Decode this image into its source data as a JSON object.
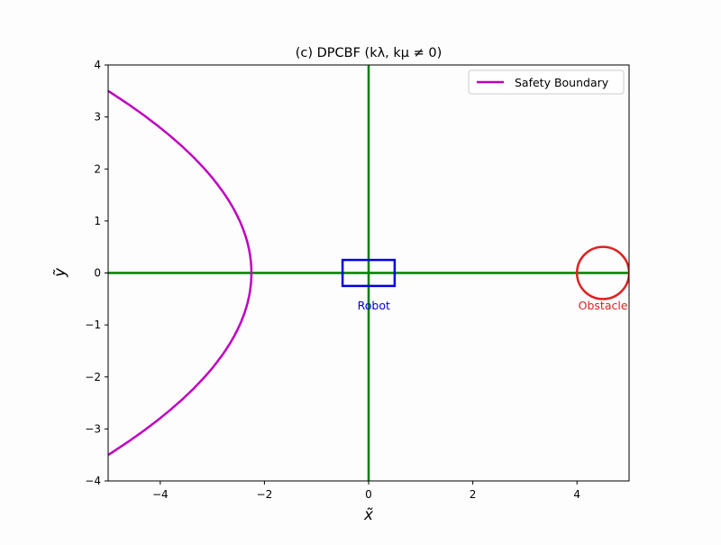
{
  "chart_data": {
    "type": "line",
    "title": "(c) DPCBF (kλ, kμ ≠ 0)",
    "xlabel": "x̃",
    "ylabel": "ỹ",
    "xlim": [
      -5,
      5
    ],
    "ylim": [
      -4,
      4
    ],
    "xticks": [
      -4,
      -2,
      0,
      2,
      4
    ],
    "yticks": [
      -4,
      -3,
      -2,
      -1,
      0,
      1,
      2,
      3,
      4
    ],
    "grid": false,
    "legend": {
      "placement": "top-right",
      "entries": [
        "Safety Boundary"
      ]
    },
    "series": [
      {
        "name": "Safety Boundary",
        "color": "#bf00bf",
        "kind": "parabola",
        "vertex_x": -2.25,
        "coef": 0.2245,
        "y_range": [
          -3.5,
          3.5
        ]
      }
    ],
    "axes_lines": {
      "color": "#007f00",
      "x": 0,
      "y": 0
    },
    "robot": {
      "label": "Robot",
      "color": "#0000dd",
      "x": [
        -0.5,
        0.5
      ],
      "y": [
        -0.25,
        0.25
      ],
      "label_pos": [
        0.1,
        -0.63
      ]
    },
    "obstacle": {
      "label": "Obstacle",
      "color": "#dd2222",
      "center": [
        4.5,
        0
      ],
      "radius": 0.5,
      "label_pos": [
        4.5,
        -0.63
      ]
    }
  }
}
